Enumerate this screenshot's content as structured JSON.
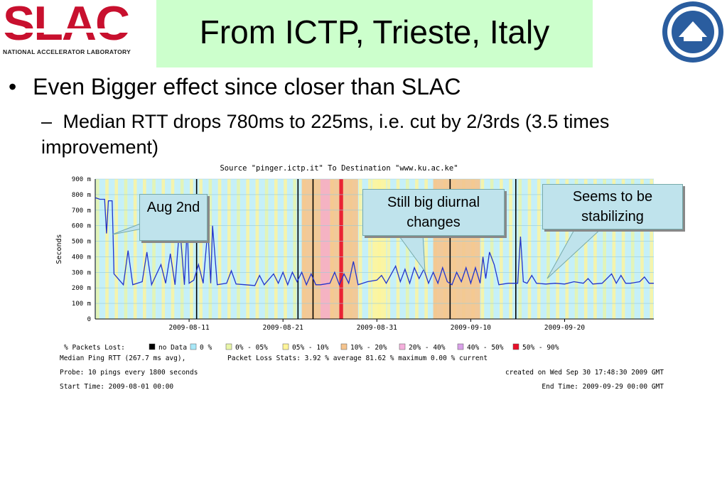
{
  "header": {
    "logo_text": "SLAC",
    "logo_subtitle": "NATIONAL ACCELERATOR LABORATORY",
    "title": "From ICTP, Trieste, Italy"
  },
  "bullets": {
    "b1": "Even Bigger effect since closer than SLAC",
    "b1_marker": "•",
    "b2": "Median RTT drops 780ms to 225ms, i.e. cut by 2/3rds (3.5 times improvement)",
    "b2_marker": "–"
  },
  "callouts": {
    "aug": "Aug 2nd",
    "diurnal": "Still big diurnal changes",
    "stable": "Seems to be stabilizing"
  },
  "chart_data": {
    "type": "line",
    "title": "Source \"pinger.ictp.it\" To Destination \"www.ku.ac.ke\"",
    "ylabel": "Seconds",
    "ylim": [
      0,
      900
    ],
    "yticks": [
      {
        "v": 0,
        "t": "0"
      },
      {
        "v": 100,
        "t": "100 m"
      },
      {
        "v": 200,
        "t": "200 m"
      },
      {
        "v": 300,
        "t": "300 m"
      },
      {
        "v": 400,
        "t": "400 m"
      },
      {
        "v": 500,
        "t": "500 m"
      },
      {
        "v": 600,
        "t": "600 m"
      },
      {
        "v": 700,
        "t": "700 m"
      },
      {
        "v": 800,
        "t": "800 m"
      },
      {
        "v": 900,
        "t": "900 m"
      }
    ],
    "xlim": [
      0,
      59.5
    ],
    "xticks": [
      {
        "d": 10,
        "t": "2009-08-11"
      },
      {
        "d": 20,
        "t": "2009-08-21"
      },
      {
        "d": 30,
        "t": "2009-08-31"
      },
      {
        "d": 40,
        "t": "2009-09-10"
      },
      {
        "d": 50,
        "t": "2009-09-20"
      }
    ],
    "no_data_days": [
      10.8,
      21.6,
      23.2,
      37.8,
      44.8
    ],
    "loss_bands": [
      {
        "from": 22,
        "to": 28,
        "color": "#f5c48e"
      },
      {
        "from": 24,
        "to": 25,
        "color": "#f5b0c8"
      },
      {
        "from": 26,
        "to": 26.4,
        "color": "#e8102a"
      },
      {
        "from": 29.5,
        "to": 31,
        "color": "#fff59a"
      },
      {
        "from": 36,
        "to": 41,
        "color": "#f5c48e"
      }
    ],
    "series": [
      {
        "points": [
          [
            0,
            780
          ],
          [
            0.5,
            770
          ],
          [
            1,
            770
          ],
          [
            1.2,
            550
          ],
          [
            1.4,
            760
          ],
          [
            1.8,
            760
          ],
          [
            1.9,
            540
          ],
          [
            2,
            290
          ],
          [
            3,
            220
          ],
          [
            3.5,
            440
          ],
          [
            4,
            220
          ],
          [
            5,
            240
          ],
          [
            5.5,
            430
          ],
          [
            6,
            220
          ],
          [
            7,
            350
          ],
          [
            7.5,
            230
          ],
          [
            8,
            420
          ],
          [
            8.5,
            220
          ],
          [
            9,
            600
          ],
          [
            9.5,
            220
          ],
          [
            9.8,
            600
          ],
          [
            10,
            230
          ],
          [
            10.5,
            250
          ],
          [
            11,
            350
          ],
          [
            11.5,
            230
          ],
          [
            12,
            580
          ],
          [
            12.3,
            230
          ],
          [
            12.5,
            600
          ],
          [
            13,
            220
          ],
          [
            14,
            230
          ],
          [
            14.5,
            310
          ],
          [
            15,
            225
          ],
          [
            16,
            220
          ],
          [
            17,
            215
          ],
          [
            17.5,
            280
          ],
          [
            18,
            220
          ],
          [
            19,
            290
          ],
          [
            19.5,
            230
          ],
          [
            20,
            300
          ],
          [
            20.5,
            220
          ],
          [
            21,
            300
          ],
          [
            21.5,
            240
          ],
          [
            22,
            300
          ],
          [
            22.5,
            220
          ],
          [
            23,
            290
          ],
          [
            23.5,
            220
          ],
          [
            24,
            220
          ],
          [
            25,
            230
          ],
          [
            25.5,
            300
          ],
          [
            26,
            220
          ],
          [
            26.5,
            290
          ],
          [
            27,
            230
          ],
          [
            27.5,
            370
          ],
          [
            28,
            220
          ],
          [
            29,
            240
          ],
          [
            30,
            250
          ],
          [
            30.5,
            280
          ],
          [
            31,
            230
          ],
          [
            32,
            340
          ],
          [
            32.5,
            240
          ],
          [
            33,
            320
          ],
          [
            33.5,
            230
          ],
          [
            34,
            330
          ],
          [
            34.5,
            260
          ],
          [
            35,
            320
          ],
          [
            35.5,
            230
          ],
          [
            36,
            300
          ],
          [
            36.5,
            230
          ],
          [
            37,
            330
          ],
          [
            37.5,
            240
          ],
          [
            38,
            220
          ],
          [
            38.5,
            300
          ],
          [
            39,
            240
          ],
          [
            39.5,
            330
          ],
          [
            40,
            230
          ],
          [
            40.5,
            330
          ],
          [
            41,
            230
          ],
          [
            41.3,
            400
          ],
          [
            41.6,
            260
          ],
          [
            42,
            430
          ],
          [
            42.5,
            350
          ],
          [
            43,
            220
          ],
          [
            44,
            230
          ],
          [
            45,
            230
          ],
          [
            45.3,
            530
          ],
          [
            45.6,
            240
          ],
          [
            46,
            230
          ],
          [
            46.5,
            280
          ],
          [
            47,
            230
          ],
          [
            48,
            225
          ],
          [
            49,
            230
          ],
          [
            50,
            225
          ],
          [
            51,
            240
          ],
          [
            52,
            230
          ],
          [
            52.5,
            260
          ],
          [
            53,
            225
          ],
          [
            54,
            230
          ],
          [
            55,
            290
          ],
          [
            55.5,
            230
          ],
          [
            56,
            280
          ],
          [
            56.5,
            230
          ],
          [
            57,
            230
          ],
          [
            58,
            240
          ],
          [
            58.5,
            270
          ],
          [
            59,
            230
          ],
          [
            59.5,
            230
          ]
        ],
        "color": "#2233cc"
      }
    ],
    "legend": {
      "lost_label": "% Packets Lost:",
      "entries": [
        {
          "color": "#000000",
          "t": "no Data"
        },
        {
          "color": "#a8e8f8",
          "t": "0 %"
        },
        {
          "color": "#e8f5a8",
          "t": "0% - 05%"
        },
        {
          "color": "#fff59a",
          "t": "05% - 10%"
        },
        {
          "color": "#f5c48e",
          "t": "10% - 20%"
        },
        {
          "color": "#f5b0dc",
          "t": "20% - 40%"
        },
        {
          "color": "#d8a0e8",
          "t": "40% - 50%"
        },
        {
          "color": "#e8102a",
          "t": "50% - 90%"
        }
      ],
      "median_line": "Median Ping RTT (267.7 ms avg),",
      "loss_stats": "Packet Loss Stats: 3.92 % average   81.62 % maximum   0.00 % current",
      "probe": "Probe: 10 pings every 1800 seconds",
      "created": "created on Wed Sep 30 17:48:30 2009 GMT",
      "start": "Start Time: 2009-08-01 00:00",
      "end": "End Time: 2009-09-29 00:00 GMT"
    }
  }
}
